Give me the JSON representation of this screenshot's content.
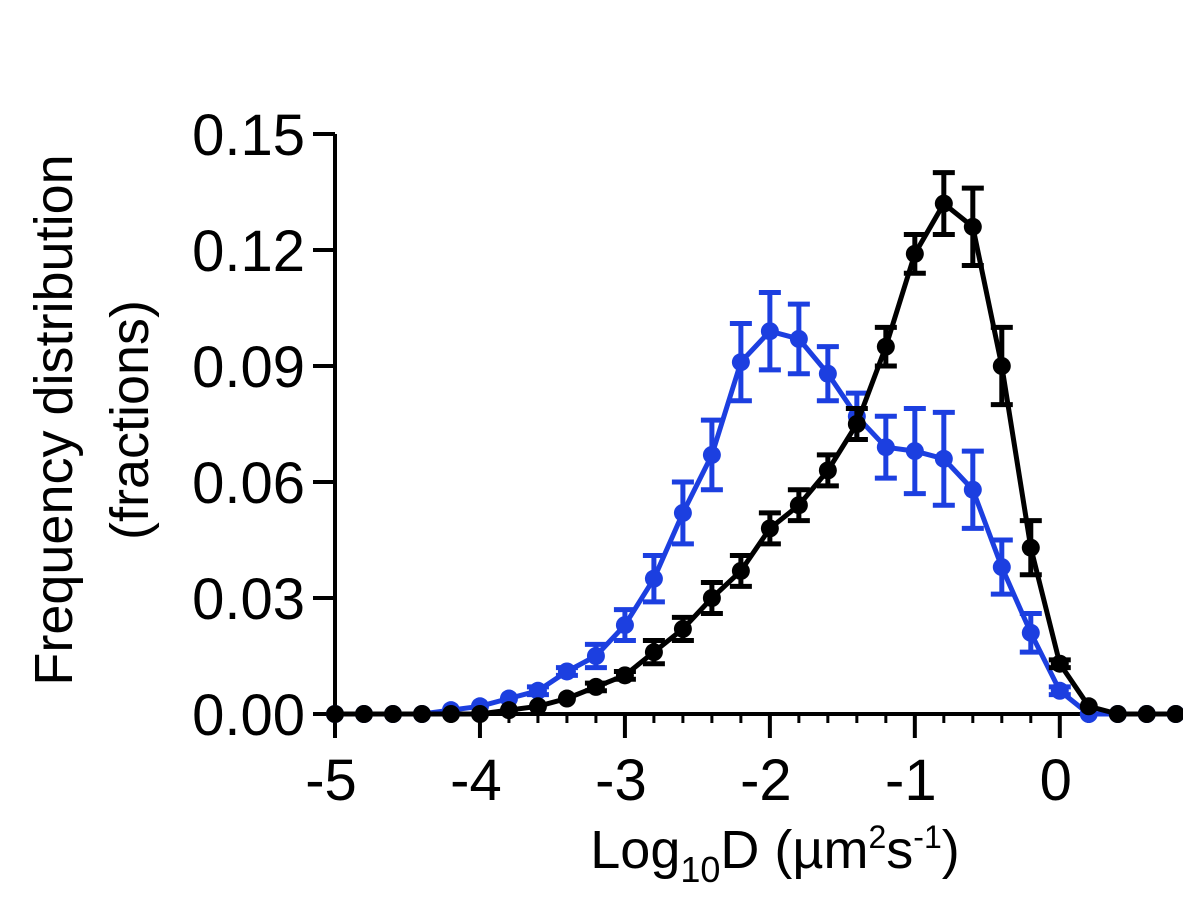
{
  "chart_data": {
    "type": "line",
    "title": "",
    "ylabel_line1": "Frequency distribution",
    "ylabel_line2": "(fractions)",
    "xlabel": {
      "main": "Log",
      "sub": "10",
      "var": "D (µm",
      "sup1": "2",
      "mid": "s",
      "sup2": "-1",
      "end": ")"
    },
    "xlim": [
      -5,
      0.85
    ],
    "ylim": [
      0,
      0.15
    ],
    "x_ticks": [
      -5,
      -4,
      -3,
      -2,
      -1,
      0
    ],
    "x_tick_labels": [
      "-5",
      "-4",
      "-3",
      "-2",
      "-1",
      "0"
    ],
    "y_ticks": [
      0,
      0.03,
      0.06,
      0.09,
      0.12,
      0.15
    ],
    "y_tick_labels": [
      "0.00",
      "0.03",
      "0.06",
      "0.09",
      "0.12",
      "0.15"
    ],
    "x": [
      -5.0,
      -4.8,
      -4.6,
      -4.4,
      -4.2,
      -4.0,
      -3.8,
      -3.6,
      -3.4,
      -3.2,
      -3.0,
      -2.8,
      -2.6,
      -2.4,
      -2.2,
      -2.0,
      -1.8,
      -1.6,
      -1.4,
      -1.2,
      -1.0,
      -0.8,
      -0.6,
      -0.4,
      -0.2,
      0.0,
      0.2,
      0.4,
      0.6,
      0.8
    ],
    "series": [
      {
        "color": "#1c3fe0",
        "values": [
          0.0,
          0.0,
          0.0,
          0.0,
          0.001,
          0.002,
          0.004,
          0.006,
          0.011,
          0.015,
          0.023,
          0.035,
          0.052,
          0.067,
          0.091,
          0.099,
          0.097,
          0.088,
          0.077,
          0.069,
          0.068,
          0.066,
          0.058,
          0.038,
          0.021,
          0.006,
          0.0,
          0.0,
          0.0,
          0.0
        ],
        "errors": [
          0.0,
          0.0,
          0.0,
          0.0,
          0.0,
          0.0,
          0.0,
          0.001,
          0.001,
          0.003,
          0.004,
          0.006,
          0.008,
          0.009,
          0.01,
          0.01,
          0.009,
          0.007,
          0.006,
          0.008,
          0.011,
          0.012,
          0.01,
          0.007,
          0.005,
          0.001,
          0.0,
          0.0,
          0.0,
          0.0
        ]
      },
      {
        "color": "#000000",
        "values": [
          0.0,
          0.0,
          0.0,
          0.0,
          0.0,
          0.0,
          0.001,
          0.002,
          0.004,
          0.007,
          0.01,
          0.016,
          0.022,
          0.03,
          0.037,
          0.048,
          0.054,
          0.063,
          0.075,
          0.095,
          0.119,
          0.132,
          0.126,
          0.09,
          0.043,
          0.013,
          0.002,
          0.0,
          0.0,
          0.0
        ],
        "errors": [
          0.0,
          0.0,
          0.0,
          0.0,
          0.0,
          0.0,
          0.0,
          0.0,
          0.0,
          0.001,
          0.001,
          0.003,
          0.003,
          0.004,
          0.004,
          0.004,
          0.004,
          0.004,
          0.004,
          0.005,
          0.005,
          0.008,
          0.01,
          0.01,
          0.007,
          0.001,
          0.0,
          0.0,
          0.0,
          0.0
        ]
      }
    ],
    "grid": false,
    "legend": "none"
  }
}
